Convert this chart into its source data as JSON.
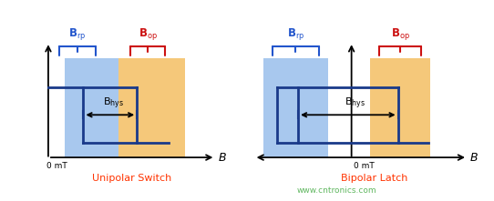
{
  "background_color": "#ffffff",
  "title_color": "#ff3300",
  "unipolar_title": "Unipolar Switch",
  "bipolar_title": "Bipolar Latch",
  "brp_color": "#2255cc",
  "bop_color": "#cc1111",
  "rect_line_color": "#1a3a8a",
  "blue_fill": "#a8c8ee",
  "orange_fill": "#f5c87a",
  "watermark": "www.cntronics.com",
  "watermark_color": "#44aa44"
}
